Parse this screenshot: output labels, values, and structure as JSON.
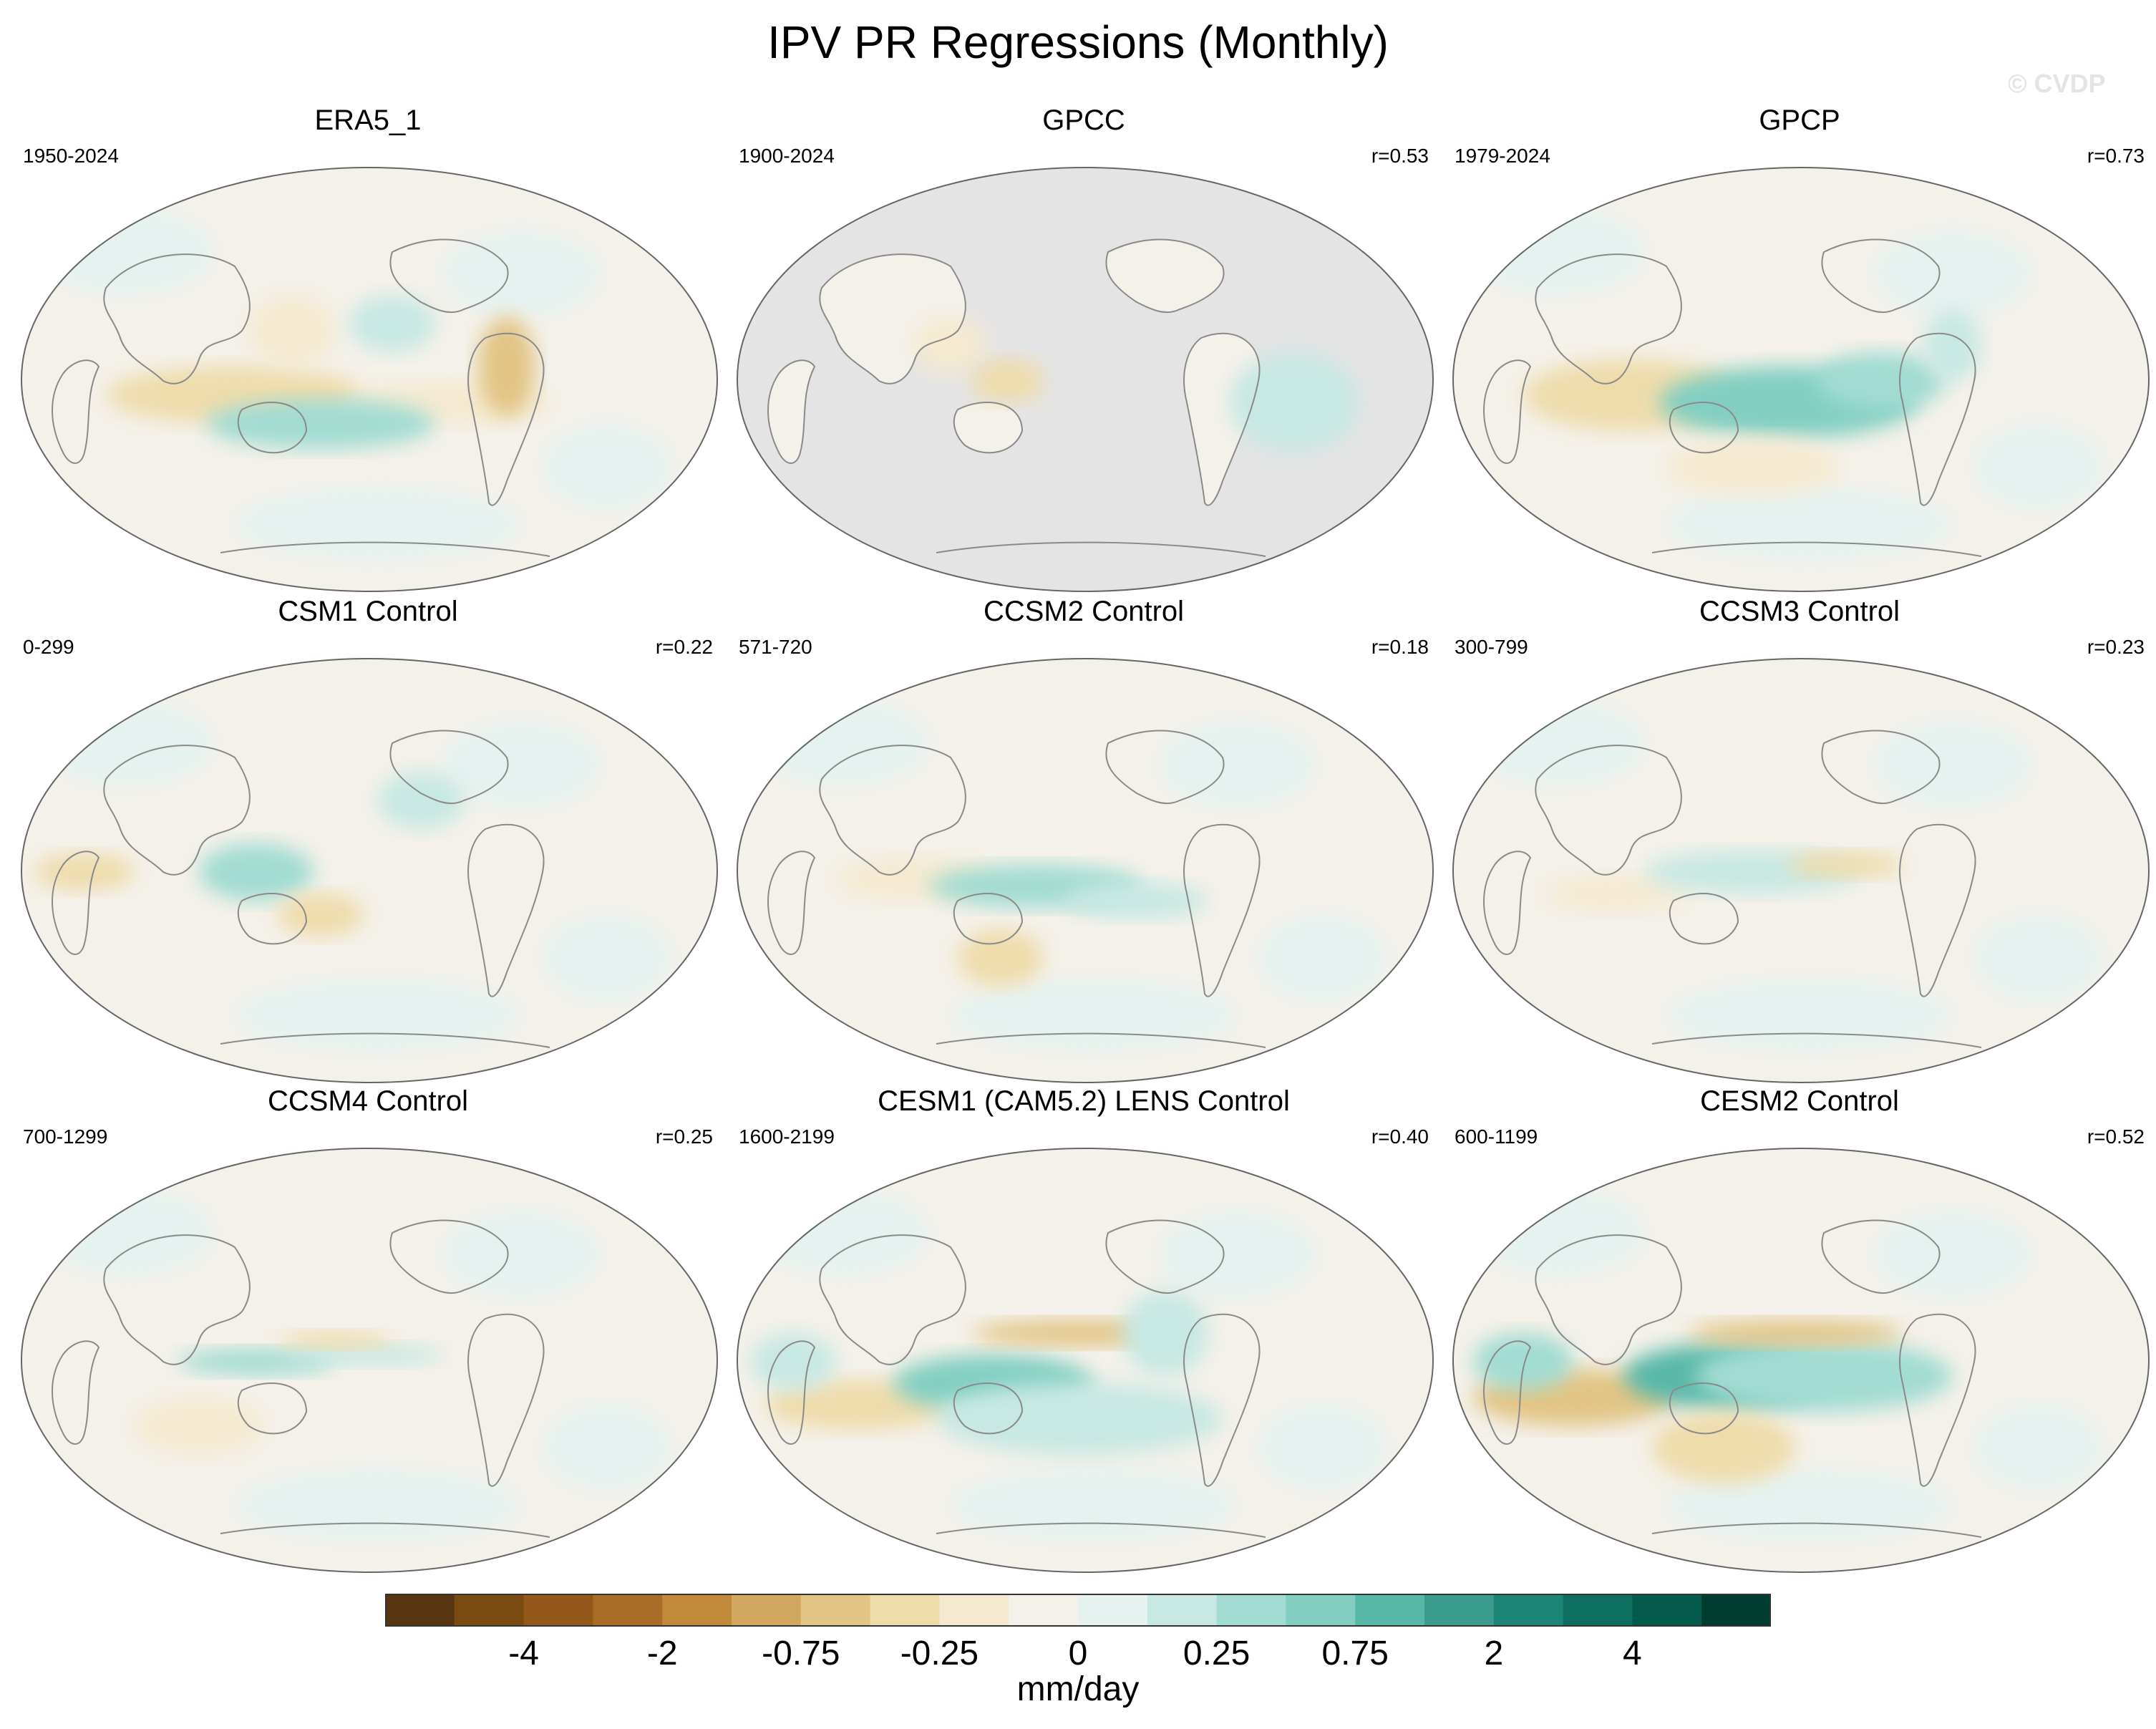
{
  "title": "IPV PR Regressions (Monthly)",
  "watermark": "© CVDP",
  "chart_data": {
    "type": "heatmap",
    "projection": "robinson-like global map (Pacific-centered)",
    "panels": [
      {
        "title": "ERA5_1",
        "period": "1950-2024",
        "corr": ""
      },
      {
        "title": "GPCC",
        "period": "1900-2024",
        "corr": "r=0.53"
      },
      {
        "title": "GPCP",
        "period": "1979-2024",
        "corr": "r=0.73"
      },
      {
        "title": "CSM1 Control",
        "period": "0-299",
        "corr": "r=0.22"
      },
      {
        "title": "CCSM2 Control",
        "period": "571-720",
        "corr": "r=0.18"
      },
      {
        "title": "CCSM3 Control",
        "period": "300-799",
        "corr": "r=0.23"
      },
      {
        "title": "CCSM4 Control",
        "period": "700-1299",
        "corr": "r=0.25"
      },
      {
        "title": "CESM1 (CAM5.2) LENS Control",
        "period": "1600-2199",
        "corr": "r=0.40"
      },
      {
        "title": "CESM2 Control",
        "period": "600-1199",
        "corr": "r=0.52"
      }
    ],
    "colorbar": {
      "units": "mm/day",
      "colors": [
        "#573510",
        "#7a4b10",
        "#93581a",
        "#a96d27",
        "#c08a3a",
        "#d2a860",
        "#e2c585",
        "#efdcab",
        "#f5ead0",
        "#f4f1ea",
        "#e5f2f0",
        "#c7e8e3",
        "#a2dcd2",
        "#82cfc1",
        "#58b8a7",
        "#3a9c8d",
        "#1c8577",
        "#0c6f60",
        "#045b4c",
        "#003d31"
      ],
      "tick_labels": [
        "-4",
        "-2",
        "-0.75",
        "-0.25",
        "0",
        "0.25",
        "0.75",
        "2",
        "4"
      ]
    }
  }
}
